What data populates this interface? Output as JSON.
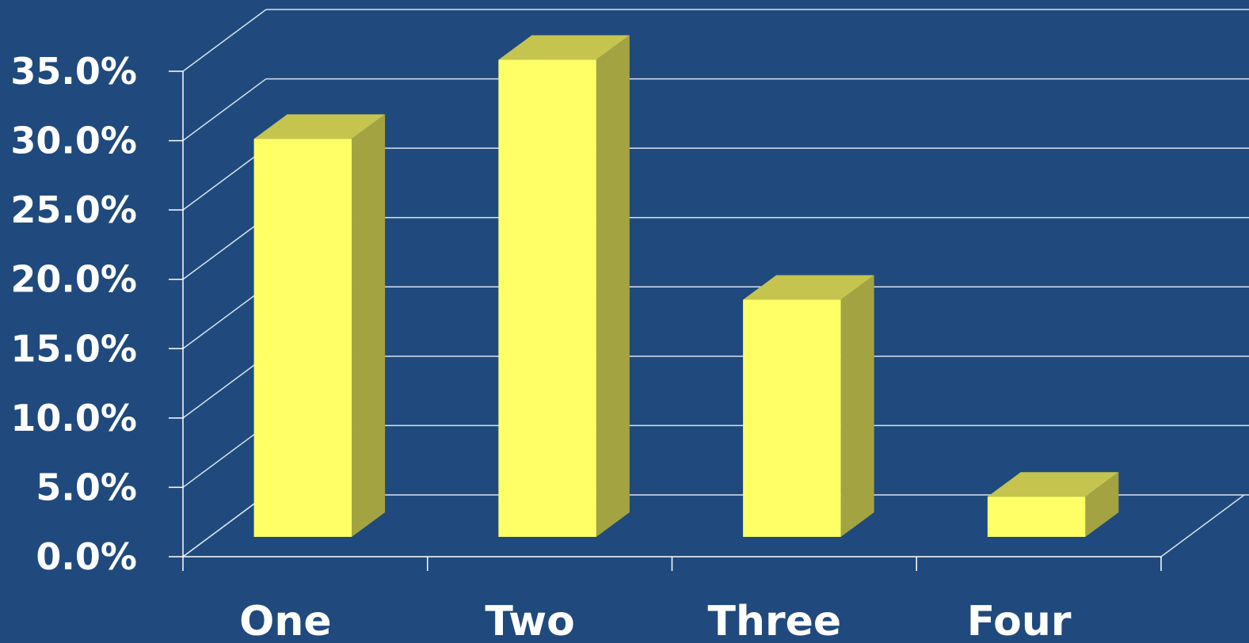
{
  "colors": {
    "background": "#204a7d",
    "bar_front": "#ffff66",
    "bar_top": "#c4c44f",
    "bar_side": "#a3a341",
    "gridline": "#d9e2ee",
    "text": "#ffffff"
  },
  "chart_data": {
    "type": "bar",
    "style": "3d-column",
    "categories": [
      "One",
      "Two",
      "Three",
      "Four"
    ],
    "values": [
      28.7,
      34.4,
      17.1,
      2.9
    ],
    "value_unit": "%",
    "ylim": [
      0,
      35
    ],
    "y_ticks": [
      "0.0%",
      "5.0%",
      "10.0%",
      "15.0%",
      "20.0%",
      "25.0%",
      "30.0%",
      "35.0%"
    ],
    "title": "",
    "xlabel": "",
    "ylabel": "",
    "grid": true,
    "legend": false
  }
}
